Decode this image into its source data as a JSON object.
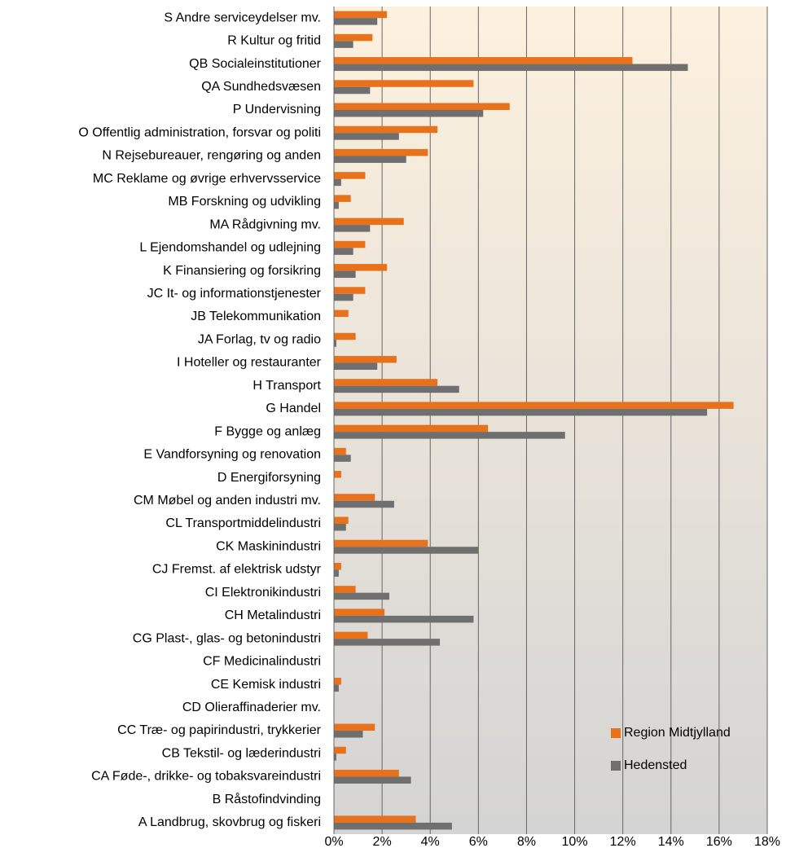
{
  "chart_data": {
    "type": "hbar",
    "categories": [
      "S Andre serviceydelser mv.",
      "R Kultur og fritid",
      "QB Socialeinstitutioner",
      "QA Sundhedsvæsen",
      "P Undervisning",
      "O Offentlig administration, forsvar og politi",
      "N Rejsebureauer, rengøring og anden",
      "MC Reklame og øvrige erhvervsservice",
      "MB Forskning og udvikling",
      "MA Rådgivning mv.",
      "L Ejendomshandel og udlejning",
      "K Finansiering og forsikring",
      "JC It- og informationstjenester",
      "JB Telekommunikation",
      "JA Forlag, tv og radio",
      "I Hoteller og restauranter",
      "H Transport",
      "G Handel",
      "F Bygge og anlæg",
      "E Vandforsyning og renovation",
      "D Energiforsyning",
      "CM Møbel og anden industri mv.",
      "CL Transportmiddelindustri",
      "CK Maskinindustri",
      "CJ Fremst. af elektrisk udstyr",
      "CI Elektronikindustri",
      "CH Metalindustri",
      "CG Plast-, glas- og betonindustri",
      "CF Medicinalindustri",
      "CE Kemisk industri",
      "CD Olieraffinaderier mv.",
      "CC Træ- og papirindustri, trykkerier",
      "CB Tekstil- og læderindustri",
      "CA Føde-, drikke- og tobaksvareindustri",
      "B Råstofindvinding",
      "A Landbrug, skovbrug og fiskeri"
    ],
    "series": [
      {
        "name": "Region Midtjylland",
        "color": "#e8711c",
        "values": [
          2.2,
          1.6,
          12.4,
          5.8,
          7.3,
          4.3,
          3.9,
          1.3,
          0.7,
          2.9,
          1.3,
          2.2,
          1.3,
          0.6,
          0.9,
          2.6,
          4.3,
          16.6,
          6.4,
          0.5,
          0.3,
          1.7,
          0.6,
          3.9,
          0.3,
          0.9,
          2.1,
          1.4,
          0,
          0.3,
          0,
          1.7,
          0.5,
          2.7,
          0,
          3.4
        ]
      },
      {
        "name": "Hedensted",
        "color": "#6f6f6f",
        "values": [
          1.8,
          0.8,
          14.7,
          1.5,
          6.2,
          2.7,
          3.0,
          0.3,
          0.2,
          1.5,
          0.8,
          0.9,
          0.8,
          0,
          0.1,
          1.8,
          5.2,
          15.5,
          9.6,
          0.7,
          0,
          2.5,
          0.5,
          6.0,
          0.2,
          2.3,
          5.8,
          4.4,
          0,
          0.2,
          0,
          1.2,
          0.1,
          3.2,
          0,
          4.9
        ]
      }
    ],
    "xlim": [
      0,
      18
    ],
    "xticks": [
      {
        "value": 0,
        "label": "0%"
      },
      {
        "value": 2,
        "label": "2%"
      },
      {
        "value": 4,
        "label": "4%"
      },
      {
        "value": 6,
        "label": "6%"
      },
      {
        "value": 8,
        "label": "8%"
      },
      {
        "value": 10,
        "label": "10%"
      },
      {
        "value": 12,
        "label": "12%"
      },
      {
        "value": 14,
        "label": "14%"
      },
      {
        "value": 16,
        "label": "16%"
      },
      {
        "value": 18,
        "label": "18%"
      }
    ],
    "grid": true,
    "legend": "lower right"
  }
}
